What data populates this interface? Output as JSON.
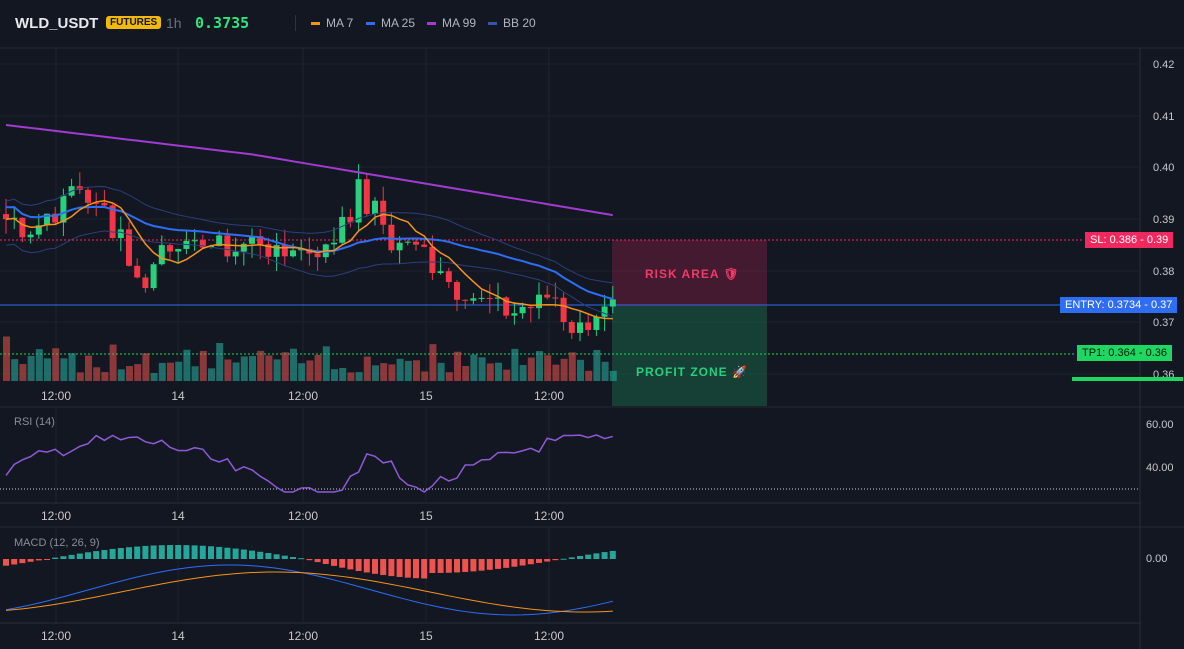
{
  "header": {
    "symbol": "WLD_USDT",
    "badge": "FUTURES",
    "timeframe": "1h",
    "price": "0.3735",
    "legend": [
      {
        "label": "MA 7",
        "color": "#f7931a"
      },
      {
        "label": "MA 25",
        "color": "#2e6df6"
      },
      {
        "label": "MA 99",
        "color": "#a23bd1"
      },
      {
        "label": "BB 20",
        "color": "#3556a8"
      }
    ]
  },
  "price_axis": [
    "0.42",
    "0.41",
    "0.40",
    "0.39",
    "0.38",
    "0.37",
    "0.36"
  ],
  "time_axis": [
    "12:00",
    "14",
    "12:00",
    "15",
    "12:00"
  ],
  "levels": {
    "sl_label": "SL: 0.386 - 0.39",
    "entry_label": "ENTRY: 0.3734 - 0.37",
    "tp_label": "TP1: 0.364 - 0.36",
    "risk_text": "RISK AREA 🛡",
    "profit_text": "PROFIT ZONE 🚀"
  },
  "rsi": {
    "title": "RSI (14)",
    "axis": [
      "60.00",
      "40.00"
    ]
  },
  "macd": {
    "title": "MACD (12, 26, 9)",
    "axis": [
      "0.00"
    ]
  },
  "colors": {
    "up": "#26d07c",
    "down": "#f23645",
    "background": "#131722",
    "sl": "#f2295f",
    "entry": "#2e6df6",
    "tp": "#1ed760"
  }
}
